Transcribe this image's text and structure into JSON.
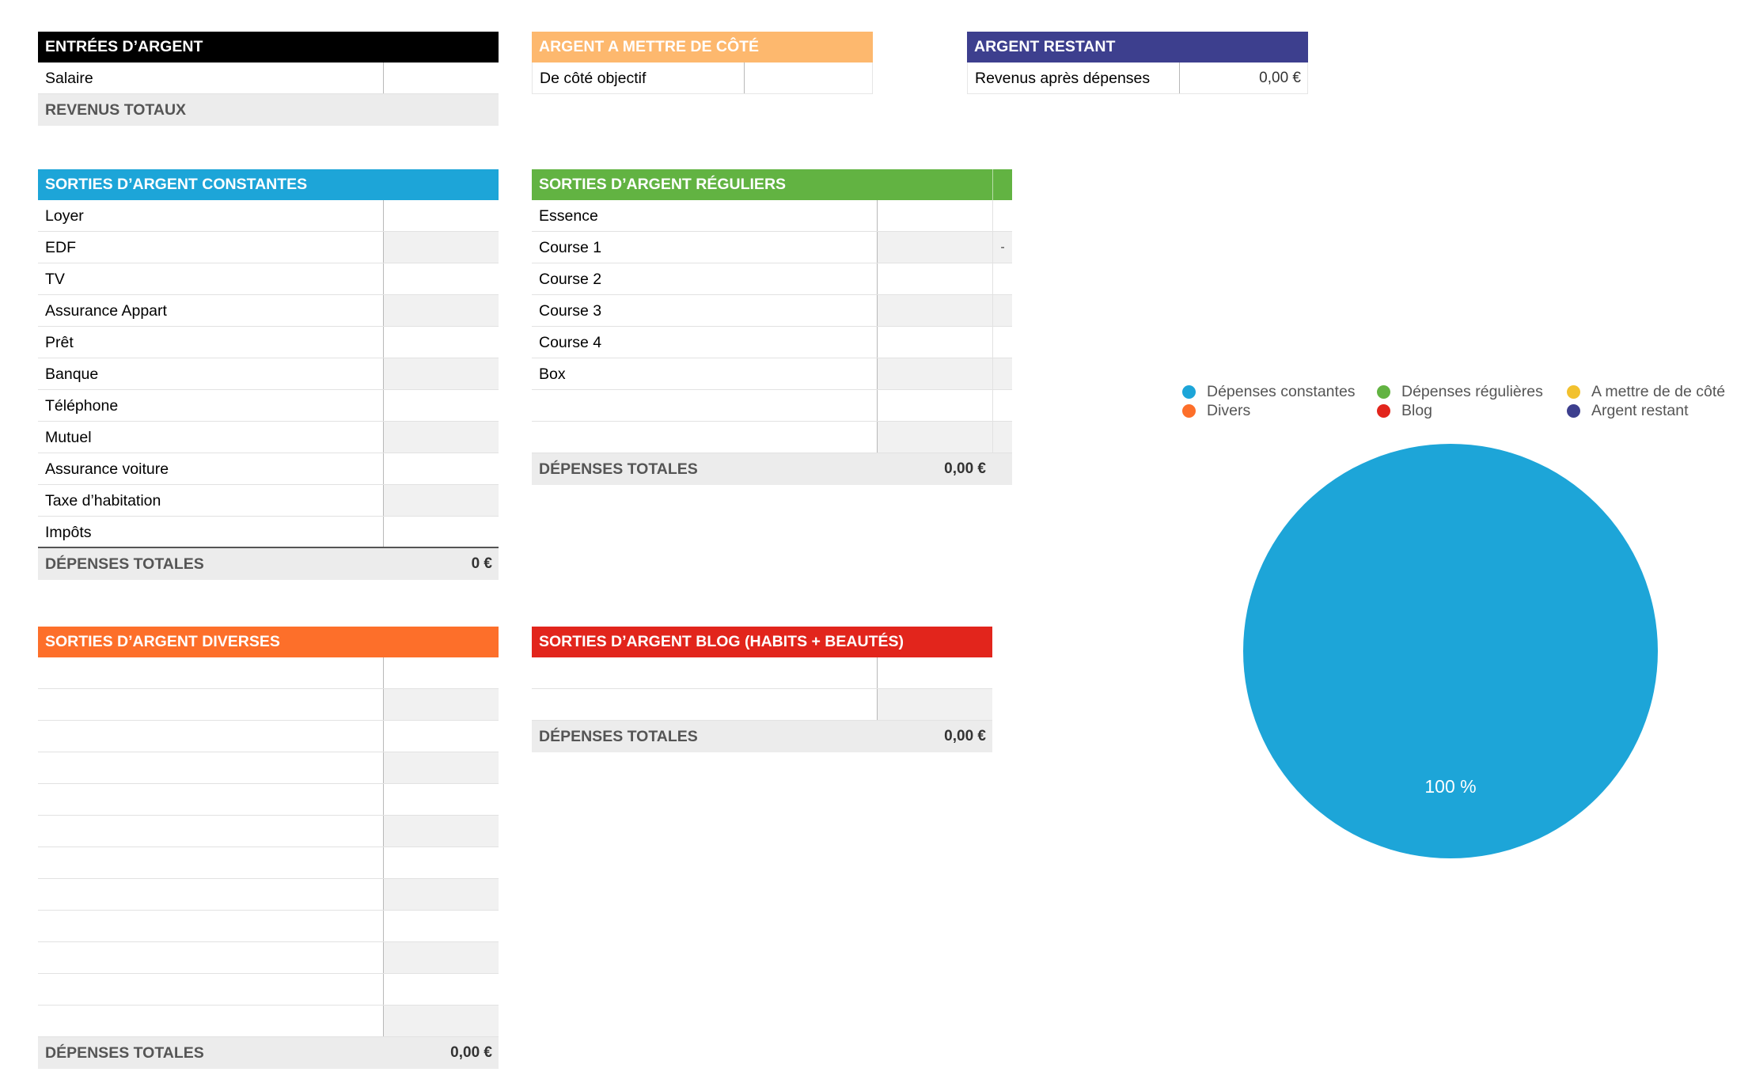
{
  "income": {
    "header": "ENTRÉES D’ARGENT",
    "rows": [
      {
        "label": "Salaire",
        "value": ""
      }
    ],
    "total_label": "REVENUS TOTAUX",
    "total_value": "",
    "color": "#000000"
  },
  "savings": {
    "header": "ARGENT A METTRE DE CÔTÉ",
    "rows": [
      {
        "label": "De côté objectif",
        "value": ""
      }
    ],
    "color": "#FDB86E"
  },
  "remaining": {
    "header": "ARGENT RESTANT",
    "rows": [
      {
        "label": "Revenus après dépenses",
        "value": "0,00 €"
      }
    ],
    "color": "#3D3F8E"
  },
  "constant": {
    "header": "SORTIES D’ARGENT CONSTANTES",
    "rows": [
      {
        "label": "Loyer",
        "value": ""
      },
      {
        "label": "EDF",
        "value": ""
      },
      {
        "label": "TV",
        "value": ""
      },
      {
        "label": "Assurance Appart",
        "value": ""
      },
      {
        "label": "Prêt",
        "value": ""
      },
      {
        "label": "Banque",
        "value": ""
      },
      {
        "label": "Téléphone",
        "value": ""
      },
      {
        "label": "Mutuel",
        "value": ""
      },
      {
        "label": "Assurance voiture",
        "value": ""
      },
      {
        "label": "Taxe d’habitation",
        "value": ""
      },
      {
        "label": "Impôts",
        "value": ""
      }
    ],
    "total_label": "DÉPENSES TOTALES",
    "total_value": "0 €",
    "color": "#1DA5D8"
  },
  "regular": {
    "header": "SORTIES D’ARGENT RÉGULIERS",
    "rows": [
      {
        "label": "Essence",
        "value": "",
        "extra": ""
      },
      {
        "label": "Course 1",
        "value": "",
        "extra": "-"
      },
      {
        "label": "Course 2",
        "value": "",
        "extra": ""
      },
      {
        "label": "Course 3",
        "value": "",
        "extra": ""
      },
      {
        "label": "Course 4",
        "value": "",
        "extra": ""
      },
      {
        "label": "Box",
        "value": "",
        "extra": ""
      },
      {
        "label": "",
        "value": "",
        "extra": ""
      },
      {
        "label": "",
        "value": "",
        "extra": ""
      }
    ],
    "total_label": "DÉPENSES TOTALES",
    "total_value": "0,00 €",
    "color": "#62B342"
  },
  "misc": {
    "header": "SORTIES D’ARGENT DIVERSES",
    "rows": [
      {
        "label": "",
        "value": ""
      },
      {
        "label": "",
        "value": ""
      },
      {
        "label": "",
        "value": ""
      },
      {
        "label": "",
        "value": ""
      },
      {
        "label": "",
        "value": ""
      },
      {
        "label": "",
        "value": ""
      },
      {
        "label": "",
        "value": ""
      },
      {
        "label": "",
        "value": ""
      },
      {
        "label": "",
        "value": ""
      },
      {
        "label": "",
        "value": ""
      },
      {
        "label": "",
        "value": ""
      },
      {
        "label": "",
        "value": ""
      }
    ],
    "total_label": "DÉPENSES TOTALES",
    "total_value": "0,00 €",
    "color": "#FD6F2A"
  },
  "blog": {
    "header": "SORTIES D’ARGENT BLOG (HABITS + BEAUTÉS)",
    "rows": [
      {
        "label": "",
        "value": ""
      },
      {
        "label": "",
        "value": ""
      }
    ],
    "total_label": "DÉPENSES TOTALES",
    "total_value": "0,00 €",
    "color": "#E2251C"
  },
  "chart_data": {
    "type": "pie",
    "categories": [
      "Dépenses constantes",
      "Dépenses régulières",
      "A mettre de de côté",
      "Divers",
      "Blog",
      "Argent restant"
    ],
    "values": [
      100,
      0,
      0,
      0,
      0,
      0
    ],
    "colors": [
      "#1DA5D8",
      "#62B342",
      "#F2C12E",
      "#FD6F2A",
      "#E2251C",
      "#3D3F8E"
    ],
    "slice_label": "100 %",
    "legend_position": "top"
  }
}
